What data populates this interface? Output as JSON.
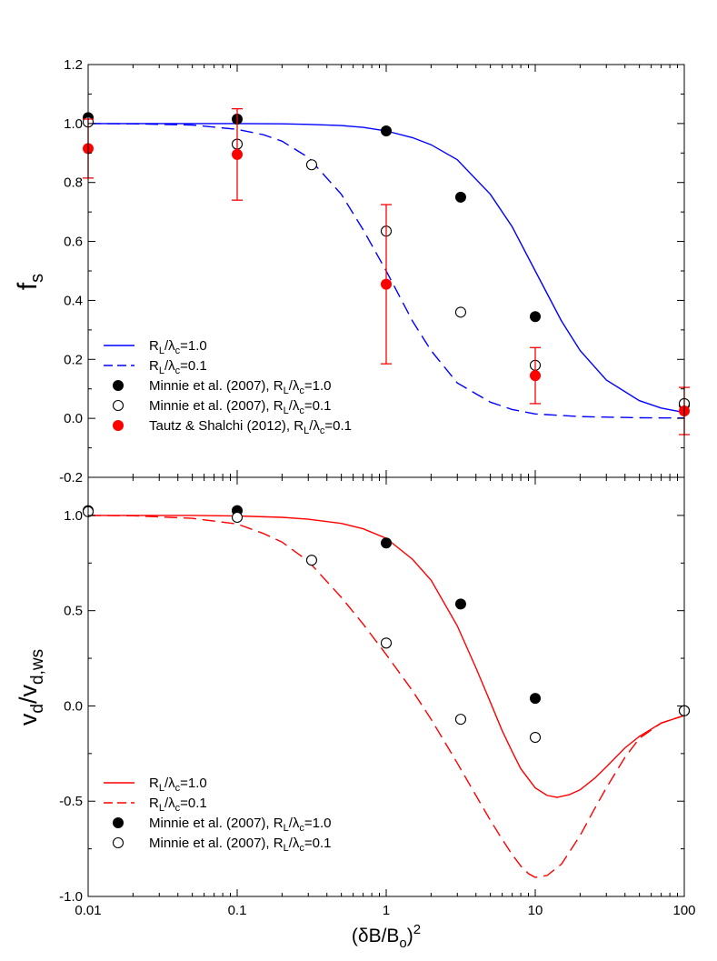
{
  "chart_data": [
    {
      "type": "scatter",
      "panel": "top",
      "ylabel_base": "f",
      "ylabel_sub": "s",
      "xscale": "log",
      "xlim": [
        0.01,
        100
      ],
      "ylim": [
        -0.2,
        1.2
      ],
      "yticks": [
        "1.2",
        "1.0",
        "0.8",
        "0.6",
        "0.4",
        "0.2",
        "0.0",
        "-0.2"
      ],
      "ytick_values": [
        1.2,
        1.0,
        0.8,
        0.6,
        0.4,
        0.2,
        0.0,
        -0.2
      ],
      "legend_position": "bottom-left",
      "series": [
        {
          "name": "R_L/λ_c=1.0 (model)",
          "kind": "line-solid",
          "color": "#0000ff",
          "x": [
            0.01,
            0.02,
            0.05,
            0.1,
            0.2,
            0.3,
            0.5,
            0.7,
            1,
            1.5,
            2,
            3,
            5,
            7,
            10,
            15,
            20,
            30,
            50,
            70,
            100
          ],
          "values": [
            1.0,
            1.0,
            1.0,
            1.0,
            0.999,
            0.997,
            0.993,
            0.987,
            0.975,
            0.952,
            0.928,
            0.877,
            0.76,
            0.65,
            0.5,
            0.33,
            0.23,
            0.13,
            0.06,
            0.035,
            0.02
          ]
        },
        {
          "name": "R_L/λ_c=0.1 (model)",
          "kind": "line-dashed",
          "color": "#0000ff",
          "x": [
            0.01,
            0.02,
            0.05,
            0.1,
            0.15,
            0.2,
            0.3,
            0.5,
            0.7,
            1,
            1.5,
            2,
            3,
            5,
            7,
            10,
            20,
            50,
            100
          ],
          "values": [
            1.0,
            0.999,
            0.995,
            0.98,
            0.962,
            0.94,
            0.885,
            0.76,
            0.64,
            0.5,
            0.33,
            0.23,
            0.12,
            0.055,
            0.03,
            0.015,
            0.006,
            0.002,
            0.001
          ]
        },
        {
          "name": "Minnie et al. (2007), R_L/λ_c=1.0",
          "kind": "marker-filled",
          "color": "#000000",
          "x": [
            0.01,
            0.1,
            1,
            3.16,
            10,
            100
          ],
          "values": [
            1.02,
            1.015,
            0.975,
            0.75,
            0.345,
            0.045
          ]
        },
        {
          "name": "Minnie et al. (2007), R_L/λ_c=0.1",
          "kind": "marker-open",
          "color": "#000000",
          "x": [
            0.01,
            0.1,
            0.316,
            1,
            3.16,
            10,
            100
          ],
          "values": [
            1.005,
            0.93,
            0.86,
            0.635,
            0.36,
            0.18,
            0.05
          ]
        },
        {
          "name": "Tautz & Shalchi (2012), R_L/λ_c=0.1",
          "kind": "marker-error",
          "color": "#ff0000",
          "x": [
            0.01,
            0.1,
            1,
            10,
            100
          ],
          "values": [
            0.915,
            0.895,
            0.455,
            0.145,
            0.025
          ],
          "err_low": [
            0.815,
            0.74,
            0.185,
            0.05,
            -0.055
          ],
          "err_high": [
            1.015,
            1.05,
            0.725,
            0.24,
            0.105
          ]
        }
      ],
      "legend": [
        {
          "base": "R",
          "sub1": "L",
          "mid": "/λ",
          "sub2": "c",
          "tail": "=1.0"
        },
        {
          "base": "R",
          "sub1": "L",
          "mid": "/λ",
          "sub2": "c",
          "tail": "=0.1"
        },
        {
          "base": "Minnie et al. (2007), R",
          "sub1": "L",
          "mid": "/λ",
          "sub2": "c",
          "tail": "=1.0"
        },
        {
          "base": "Minnie et al. (2007), R",
          "sub1": "L",
          "mid": "/λ",
          "sub2": "c",
          "tail": "=0.1"
        },
        {
          "base": "Tautz & Shalchi (2012), R",
          "sub1": "L",
          "mid": "/λ",
          "sub2": "c",
          "tail": "=0.1"
        }
      ]
    },
    {
      "type": "scatter",
      "panel": "bottom",
      "ylabel_base1": "v",
      "ylabel_sub1": "d",
      "ylabel_mid": "/v",
      "ylabel_sub2": "d,ws",
      "xlabel_base": "(δB/B",
      "xlabel_sub": "o",
      "xlabel_close": ")",
      "xlabel_sup": "2",
      "xscale": "log",
      "xlim": [
        0.01,
        100
      ],
      "ylim": [
        -1.0,
        1.2
      ],
      "xticks": [
        "0.01",
        "0.1",
        "1",
        "10",
        "100"
      ],
      "xtick_values": [
        0.01,
        0.1,
        1,
        10,
        100
      ],
      "yticks": [
        "1.0",
        "0.5",
        "0.0",
        "-0.5",
        "-1.0"
      ],
      "ytick_values": [
        1.0,
        0.5,
        0.0,
        -0.5,
        -1.0
      ],
      "legend_position": "bottom-left",
      "series": [
        {
          "name": "R_L/λ_c=1.0 (model)",
          "kind": "line-solid",
          "color": "#ff0000",
          "x": [
            0.01,
            0.05,
            0.1,
            0.2,
            0.3,
            0.5,
            0.7,
            1,
            1.5,
            2,
            3,
            4,
            5,
            6,
            7,
            8,
            10,
            12,
            14,
            17,
            20,
            25,
            30,
            40,
            50,
            70,
            100
          ],
          "values": [
            1.0,
            1.0,
            0.997,
            0.99,
            0.98,
            0.958,
            0.93,
            0.88,
            0.77,
            0.66,
            0.42,
            0.2,
            0.02,
            -0.13,
            -0.24,
            -0.33,
            -0.43,
            -0.47,
            -0.48,
            -0.465,
            -0.44,
            -0.38,
            -0.32,
            -0.22,
            -0.16,
            -0.09,
            -0.05
          ]
        },
        {
          "name": "R_L/λ_c=0.1 (model)",
          "kind": "line-dashed",
          "color": "#ff0000",
          "x": [
            0.01,
            0.02,
            0.05,
            0.1,
            0.15,
            0.2,
            0.3,
            0.5,
            0.7,
            1,
            1.5,
            2,
            3,
            4,
            5,
            6,
            7,
            8,
            9,
            10,
            12,
            15,
            20,
            25,
            30,
            40,
            50,
            70,
            100
          ],
          "values": [
            1.0,
            0.998,
            0.985,
            0.955,
            0.905,
            0.86,
            0.76,
            0.57,
            0.43,
            0.27,
            0.08,
            -0.07,
            -0.3,
            -0.47,
            -0.6,
            -0.7,
            -0.78,
            -0.84,
            -0.88,
            -0.9,
            -0.89,
            -0.83,
            -0.68,
            -0.54,
            -0.43,
            -0.27,
            -0.17,
            -0.09,
            -0.05
          ]
        },
        {
          "name": "Minnie et al. (2007), R_L/λ_c=1.0",
          "kind": "marker-filled",
          "color": "#000000",
          "x": [
            0.01,
            0.1,
            1,
            3.16,
            10,
            100
          ],
          "values": [
            1.025,
            1.025,
            0.855,
            0.535,
            0.04,
            -0.025
          ]
        },
        {
          "name": "Minnie et al. (2007), R_L/λ_c=0.1",
          "kind": "marker-open",
          "color": "#000000",
          "x": [
            0.01,
            0.1,
            0.316,
            1,
            3.16,
            10,
            100
          ],
          "values": [
            1.02,
            0.99,
            0.765,
            0.33,
            -0.07,
            -0.165,
            -0.025
          ]
        }
      ],
      "legend": [
        {
          "base": "R",
          "sub1": "L",
          "mid": "/λ",
          "sub2": "c",
          "tail": "=1.0"
        },
        {
          "base": "R",
          "sub1": "L",
          "mid": "/λ",
          "sub2": "c",
          "tail": "=0.1"
        },
        {
          "base": "Minnie et al. (2007), R",
          "sub1": "L",
          "mid": "/λ",
          "sub2": "c",
          "tail": "=1.0"
        },
        {
          "base": "Minnie et al. (2007), R",
          "sub1": "L",
          "mid": "/λ",
          "sub2": "c",
          "tail": "=0.1"
        }
      ]
    }
  ]
}
